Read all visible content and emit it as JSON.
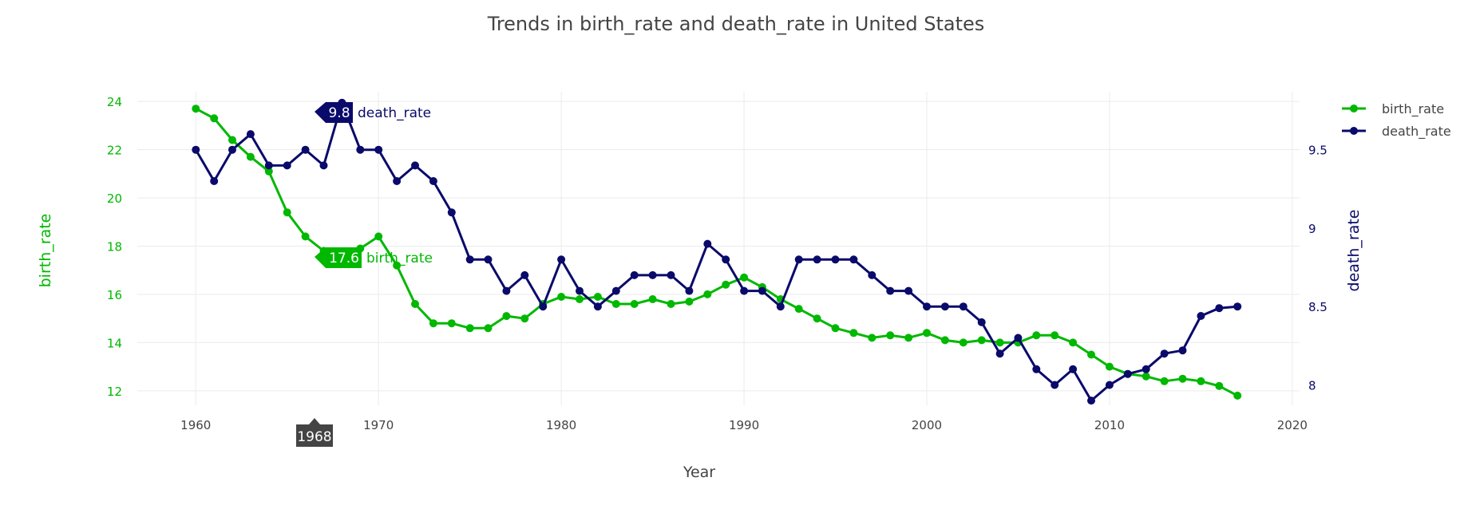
{
  "chart_data": {
    "type": "line",
    "title": "Trends in birth_rate and death_rate in United States",
    "xlabel": "Year",
    "ylabel": "birth_rate",
    "y2label": "death_rate",
    "xlim": [
      1956.8,
      2020.4
    ],
    "ylim": [
      11.4,
      24.4
    ],
    "y2lim": [
      7.87,
      9.87
    ],
    "xticks": [
      1960,
      1970,
      1980,
      1990,
      2000,
      2010,
      2020
    ],
    "yticks": [
      12,
      14,
      16,
      18,
      20,
      22,
      24
    ],
    "y2ticks": [
      8,
      8.5,
      9,
      9.5
    ],
    "y2ticklabels": [
      "8",
      "8.5",
      "9",
      "9.5"
    ],
    "grid": true,
    "legend_position": "top-right",
    "x": [
      1960,
      1961,
      1962,
      1963,
      1964,
      1965,
      1966,
      1967,
      1968,
      1969,
      1970,
      1971,
      1972,
      1973,
      1974,
      1975,
      1976,
      1977,
      1978,
      1979,
      1980,
      1981,
      1982,
      1983,
      1984,
      1985,
      1986,
      1987,
      1988,
      1989,
      1990,
      1991,
      1992,
      1993,
      1994,
      1995,
      1996,
      1997,
      1998,
      1999,
      2000,
      2001,
      2002,
      2003,
      2004,
      2005,
      2006,
      2007,
      2008,
      2009,
      2010,
      2011,
      2012,
      2013,
      2014,
      2015,
      2016,
      2017
    ],
    "series": [
      {
        "name": "birth_rate",
        "axis": "y",
        "color": "#00b800",
        "values": [
          23.7,
          23.3,
          22.4,
          21.7,
          21.1,
          19.4,
          18.4,
          17.8,
          17.6,
          17.9,
          18.4,
          17.2,
          15.6,
          14.8,
          14.8,
          14.6,
          14.6,
          15.1,
          15.0,
          15.6,
          15.9,
          15.8,
          15.9,
          15.6,
          15.6,
          15.8,
          15.6,
          15.7,
          16.0,
          16.4,
          16.7,
          16.3,
          15.8,
          15.4,
          15.0,
          14.6,
          14.4,
          14.2,
          14.3,
          14.2,
          14.4,
          14.1,
          14.0,
          14.1,
          14.0,
          14.0,
          14.3,
          14.3,
          14.0,
          13.5,
          13.0,
          12.7,
          12.6,
          12.4,
          12.5,
          12.4,
          12.2,
          11.8
        ]
      },
      {
        "name": "death_rate",
        "axis": "y2",
        "color": "#0a0a6b",
        "values": [
          9.5,
          9.3,
          9.5,
          9.6,
          9.4,
          9.4,
          9.5,
          9.4,
          9.8,
          9.5,
          9.5,
          9.3,
          9.4,
          9.3,
          9.1,
          8.8,
          8.8,
          8.6,
          8.7,
          8.5,
          8.8,
          8.6,
          8.5,
          8.6,
          8.7,
          8.7,
          8.7,
          8.6,
          8.9,
          8.8,
          8.6,
          8.6,
          8.5,
          8.8,
          8.8,
          8.8,
          8.8,
          8.7,
          8.6,
          8.6,
          8.5,
          8.5,
          8.5,
          8.4,
          8.2,
          8.3,
          8.1,
          8.0,
          8.1,
          7.9,
          8.0,
          8.07,
          8.1,
          8.2,
          8.22,
          8.44,
          8.49,
          8.5
        ]
      }
    ],
    "hover": {
      "x_label": "1968",
      "birth_value": "17.6",
      "birth_name": "birth_rate",
      "death_value": "9.8",
      "death_name": "death_rate"
    }
  }
}
